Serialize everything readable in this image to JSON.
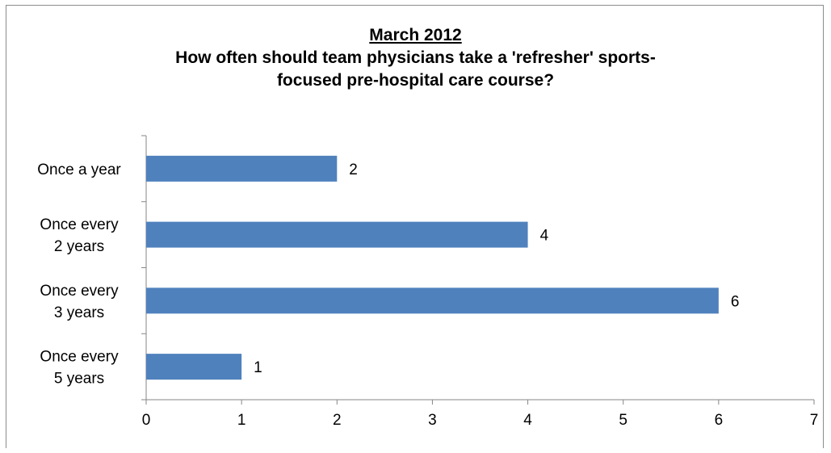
{
  "chart_data": {
    "type": "bar",
    "orientation": "horizontal",
    "title": "March 2012",
    "subtitle": "How often should team physicians take a 'refresher' sports-focused pre-hospital care course?",
    "categories": [
      [
        "Once a year"
      ],
      [
        "Once every",
        "2 years"
      ],
      [
        "Once every",
        "3 years"
      ],
      [
        "Once every",
        "5 years"
      ]
    ],
    "values": [
      2,
      4,
      6,
      1
    ],
    "xlim": [
      0,
      7
    ],
    "xticks": [
      0,
      1,
      2,
      3,
      4,
      5,
      6,
      7
    ],
    "grid": false,
    "legend": "none",
    "bar_color": "#4f81bd"
  }
}
